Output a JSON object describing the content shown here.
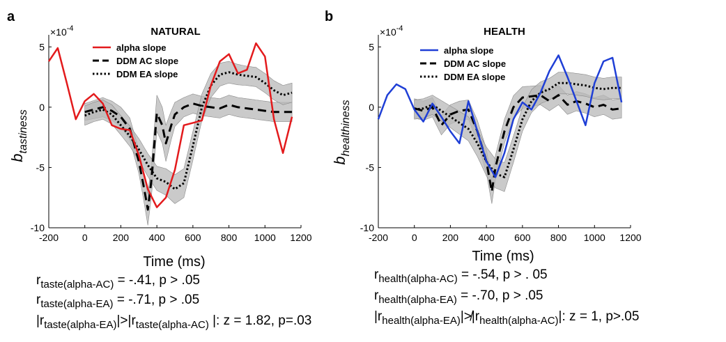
{
  "panels": [
    {
      "letter": "a",
      "title": "NATURAL",
      "ylabel": "b",
      "ylabel_sub": "tastiness",
      "xlabel": "Time (ms)",
      "exponent": "×10",
      "exponent_power": "-4",
      "stats": [
        {
          "r": "r",
          "sub": "taste(alpha-AC)",
          "text": " = -.41, p > .05"
        },
        {
          "r": "r",
          "sub": "taste(alpha-EA)",
          "text": " = -.71, p > .05"
        }
      ],
      "compare": {
        "lbar1": "|r",
        "sub1": "taste(alpha-EA)",
        "mid": "|>|r",
        "sub2": "taste(alpha-AC)",
        "rest": " |: z = 1.82, p=.03"
      }
    },
    {
      "letter": "b",
      "title": "HEALTH",
      "ylabel": "b",
      "ylabel_sub": "healthiness",
      "xlabel": "Time (ms)",
      "exponent": "×10",
      "exponent_power": "-4",
      "stats": [
        {
          "r": "r",
          "sub": "health(alpha-AC)",
          "text": " = -.54, p > . 05"
        },
        {
          "r": "r",
          "sub": "health(alpha-EA)",
          "text": " = -.70, p > .05"
        }
      ],
      "compare": {
        "lbar1": "|r",
        "sub1": "health(alpha-EA)",
        "mid": "|≯|r",
        "sub2": "health(alpha-AC)",
        "rest": "|: z = 1, p>.05"
      }
    }
  ],
  "chart_data": [
    {
      "type": "line",
      "title": "NATURAL",
      "xlabel": "Time (ms)",
      "ylabel": "b tastiness",
      "y_scale_exponent": -4,
      "xlim": [
        -200,
        1200
      ],
      "ylim": [
        -10,
        6
      ],
      "xticks": [
        -200,
        0,
        200,
        400,
        600,
        800,
        1000,
        1200
      ],
      "yticks": [
        -10,
        -5,
        0,
        5
      ],
      "grid": false,
      "legend": "top",
      "series": [
        {
          "name": "alpha slope",
          "color": "#e31a1c",
          "style": "solid",
          "x": [
            -200,
            -150,
            -100,
            -50,
            0,
            50,
            100,
            150,
            200,
            250,
            300,
            350,
            400,
            450,
            500,
            550,
            600,
            650,
            700,
            750,
            800,
            850,
            900,
            950,
            1000,
            1050,
            1100,
            1150
          ],
          "y": [
            3.8,
            4.9,
            2.0,
            -1.0,
            0.5,
            1.1,
            0.3,
            -1.5,
            -1.8,
            -1.9,
            -4.0,
            -6.8,
            -8.3,
            -7.5,
            -5.2,
            -1.5,
            -1.3,
            -1.1,
            1.8,
            3.8,
            4.4,
            2.8,
            3.1,
            5.3,
            4.2,
            -1.0,
            -3.8,
            -0.8
          ]
        },
        {
          "name": "DDM AC slope",
          "color": "#000000",
          "style": "dashed",
          "x": [
            0,
            50,
            100,
            150,
            200,
            250,
            300,
            330,
            350,
            370,
            400,
            430,
            450,
            480,
            500,
            550,
            600,
            650,
            700,
            750,
            800,
            850,
            900,
            950,
            1000,
            1050,
            1100,
            1150
          ],
          "y": [
            -0.4,
            -0.2,
            0.0,
            -0.3,
            -0.8,
            -1.8,
            -4.5,
            -6.8,
            -8.5,
            -6.0,
            -0.5,
            -1.5,
            -3.0,
            -1.5,
            -0.6,
            0.0,
            0.3,
            0.1,
            0.0,
            -0.1,
            0.2,
            0.0,
            -0.1,
            -0.2,
            -0.3,
            -0.4,
            -0.4,
            -0.4
          ]
        },
        {
          "name": "DDM EA slope",
          "color": "#000000",
          "style": "dotted",
          "x": [
            0,
            50,
            100,
            150,
            200,
            250,
            300,
            350,
            400,
            450,
            500,
            550,
            600,
            650,
            700,
            750,
            800,
            850,
            900,
            950,
            1000,
            1050,
            1100,
            1150
          ],
          "y": [
            -0.7,
            -0.4,
            -0.2,
            -0.6,
            -1.5,
            -2.4,
            -3.5,
            -4.8,
            -5.9,
            -6.2,
            -6.8,
            -6.3,
            -3.2,
            0.0,
            1.8,
            2.7,
            2.9,
            2.7,
            2.6,
            2.5,
            2.0,
            1.4,
            1.0,
            1.2
          ]
        }
      ]
    },
    {
      "type": "line",
      "title": "HEALTH",
      "xlabel": "Time (ms)",
      "ylabel": "b healthiness",
      "y_scale_exponent": -4,
      "xlim": [
        -200,
        1200
      ],
      "ylim": [
        -10,
        6
      ],
      "xticks": [
        -200,
        0,
        200,
        400,
        600,
        800,
        1000,
        1200
      ],
      "yticks": [
        -10,
        -5,
        0,
        5
      ],
      "grid": false,
      "legend": "top",
      "series": [
        {
          "name": "alpha slope",
          "color": "#1f3fd6",
          "style": "solid",
          "x": [
            -200,
            -150,
            -100,
            -50,
            0,
            50,
            100,
            150,
            200,
            250,
            300,
            350,
            400,
            450,
            500,
            550,
            600,
            650,
            700,
            750,
            800,
            850,
            900,
            950,
            1000,
            1050,
            1100,
            1150
          ],
          "y": [
            -1.0,
            1.0,
            1.9,
            1.5,
            -0.2,
            -1.2,
            0.3,
            -0.8,
            -2.0,
            -3.0,
            0.5,
            -2.0,
            -4.5,
            -5.8,
            -3.8,
            -1.0,
            0.4,
            -0.2,
            1.2,
            3.0,
            4.3,
            2.5,
            0.5,
            -1.5,
            2.0,
            3.8,
            4.1,
            0.4
          ]
        },
        {
          "name": "DDM AC slope",
          "color": "#000000",
          "style": "dashed",
          "x": [
            0,
            50,
            100,
            150,
            200,
            250,
            300,
            350,
            400,
            430,
            450,
            500,
            550,
            600,
            650,
            700,
            750,
            800,
            850,
            900,
            950,
            1000,
            1050,
            1100,
            1150
          ],
          "y": [
            -0.1,
            -0.3,
            0.0,
            -1.5,
            -0.6,
            -0.3,
            -0.2,
            -2.0,
            -4.5,
            -7.0,
            -5.0,
            -2.0,
            0.0,
            0.8,
            0.9,
            1.0,
            0.5,
            1.0,
            0.2,
            0.5,
            0.3,
            0.0,
            0.2,
            -0.2,
            -0.1
          ]
        },
        {
          "name": "DDM EA slope",
          "color": "#000000",
          "style": "dotted",
          "x": [
            0,
            50,
            100,
            150,
            200,
            250,
            300,
            350,
            400,
            450,
            500,
            550,
            600,
            650,
            700,
            750,
            800,
            850,
            900,
            950,
            1000,
            1050,
            1100,
            1150
          ],
          "y": [
            -0.2,
            -0.1,
            0.2,
            -0.3,
            -0.8,
            -1.3,
            -1.8,
            -3.0,
            -4.5,
            -5.5,
            -5.8,
            -3.5,
            -1.0,
            0.5,
            1.2,
            1.5,
            2.0,
            2.0,
            1.9,
            1.8,
            1.6,
            1.5,
            1.6,
            1.6
          ]
        }
      ]
    }
  ]
}
